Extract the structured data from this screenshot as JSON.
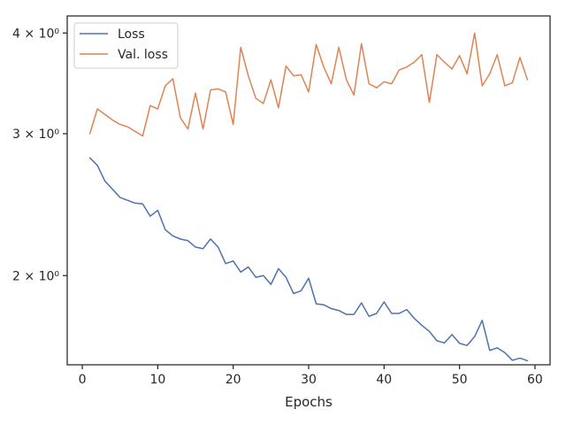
{
  "chart_data": {
    "type": "line",
    "xlabel": "Epochs",
    "ylabel": "",
    "yscale": "log",
    "xlim": [
      -2.0,
      62.0
    ],
    "ylim": [
      1.55,
      4.2
    ],
    "x_ticks": [
      0,
      10,
      20,
      30,
      40,
      50,
      60
    ],
    "y_ticks": [
      {
        "value": 2,
        "label": "2 × 10⁰"
      },
      {
        "value": 3,
        "label": "3 × 10⁰"
      },
      {
        "value": 4,
        "label": "4 × 10⁰"
      }
    ],
    "grid": false,
    "legend_position": "top-left",
    "x": [
      1,
      2,
      3,
      4,
      5,
      6,
      7,
      8,
      9,
      10,
      11,
      12,
      13,
      14,
      15,
      16,
      17,
      18,
      19,
      20,
      21,
      22,
      23,
      24,
      25,
      26,
      27,
      28,
      29,
      30,
      31,
      32,
      33,
      34,
      35,
      36,
      37,
      38,
      39,
      40,
      41,
      42,
      43,
      44,
      45,
      46,
      47,
      48,
      49,
      50,
      51,
      52,
      53,
      54,
      55,
      56,
      57,
      58,
      59
    ],
    "series": [
      {
        "name": "Loss",
        "color": "#4c72b0",
        "values": [
          2.8,
          2.74,
          2.62,
          2.56,
          2.5,
          2.48,
          2.46,
          2.455,
          2.37,
          2.41,
          2.28,
          2.24,
          2.22,
          2.21,
          2.17,
          2.16,
          2.22,
          2.17,
          2.07,
          2.085,
          2.02,
          2.05,
          1.99,
          2.0,
          1.95,
          2.04,
          1.99,
          1.9,
          1.915,
          1.985,
          1.845,
          1.84,
          1.82,
          1.81,
          1.79,
          1.79,
          1.85,
          1.78,
          1.795,
          1.855,
          1.795,
          1.795,
          1.815,
          1.77,
          1.735,
          1.705,
          1.66,
          1.65,
          1.69,
          1.648,
          1.638,
          1.68,
          1.76,
          1.615,
          1.627,
          1.605,
          1.57,
          1.58,
          1.568
        ]
      },
      {
        "name": "Val. loss",
        "color": "#dd8452",
        "values": [
          3.0,
          3.22,
          3.17,
          3.12,
          3.08,
          3.06,
          3.02,
          2.98,
          3.25,
          3.22,
          3.44,
          3.51,
          3.14,
          3.04,
          3.37,
          3.04,
          3.4,
          3.41,
          3.38,
          3.08,
          3.84,
          3.54,
          3.32,
          3.27,
          3.5,
          3.23,
          3.64,
          3.54,
          3.55,
          3.38,
          3.87,
          3.63,
          3.46,
          3.84,
          3.5,
          3.35,
          3.88,
          3.46,
          3.42,
          3.48,
          3.46,
          3.6,
          3.63,
          3.68,
          3.76,
          3.28,
          3.76,
          3.68,
          3.61,
          3.75,
          3.56,
          4.0,
          3.44,
          3.56,
          3.76,
          3.44,
          3.47,
          3.73,
          3.5
        ]
      }
    ]
  }
}
